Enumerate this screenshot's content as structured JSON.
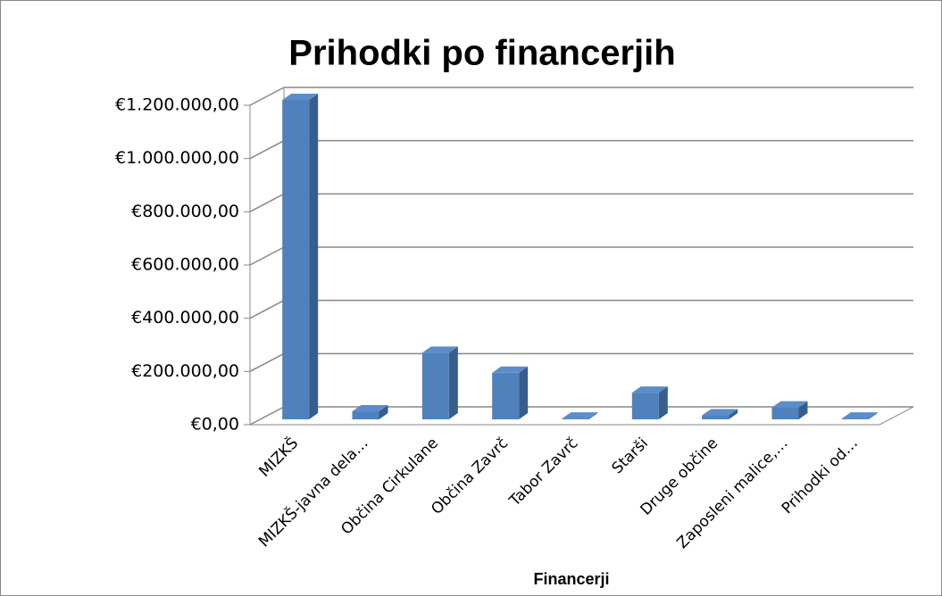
{
  "chart_data": {
    "type": "bar3d",
    "title": "Prihodki po financerjih",
    "x_label": "Financerji",
    "categories": [
      "MIZKŠ",
      "MIZKŠ-javna dela…",
      "Občina Cirkulane",
      "Občina Zavrč",
      "Tabor Zavrč",
      "Starši",
      "Druge občine",
      "Zaposleni malice,…",
      "Prihodki od…"
    ],
    "values": [
      1200000,
      30000,
      250000,
      175000,
      3000,
      100000,
      15000,
      45000,
      3000
    ],
    "color": "#4f81bd",
    "ylim": [
      0,
      1200000
    ],
    "yticks": [
      {
        "value": 0,
        "label": "€0,00"
      },
      {
        "value": 200000,
        "label": "€200.000,00"
      },
      {
        "value": 400000,
        "label": "€400.000,00"
      },
      {
        "value": 600000,
        "label": "€600.000,00"
      },
      {
        "value": 800000,
        "label": "€800.000,00"
      },
      {
        "value": 1000000,
        "label": "€1.000.000,00"
      },
      {
        "value": 1200000,
        "label": "€1.200.000,00"
      }
    ],
    "grid": true
  }
}
